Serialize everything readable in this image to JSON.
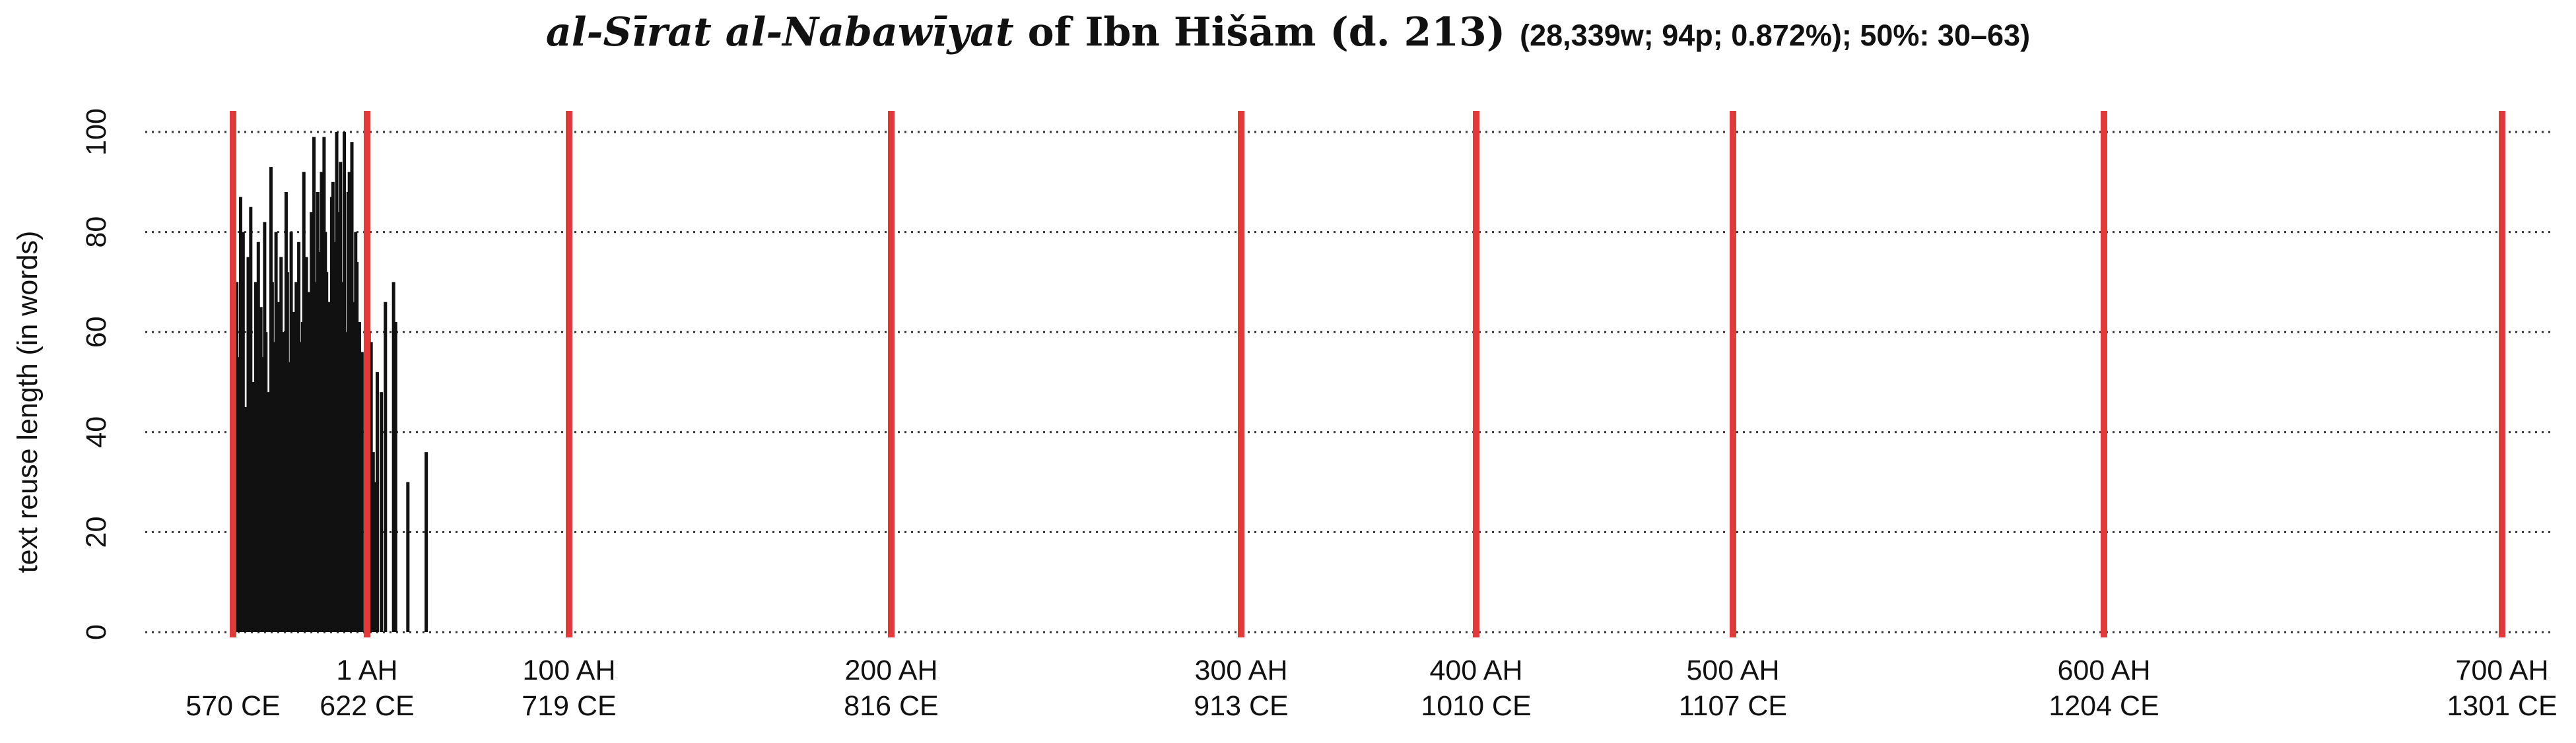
{
  "title": {
    "italic": "al-Sīrat al-Nabawīyat",
    "rest": " of Ibn Hišām (d. 213)",
    "stats": "(28,339w; 94p; 0.872%); 50%: 30–63)"
  },
  "chart_data": {
    "type": "bar",
    "title": "al-Sīrat al-Nabawīyat of Ibn Hišām (d. 213)",
    "subtitle": "(28,339w; 94p; 0.872%); 50%: 30–63)",
    "ylabel": "text reuse length (in words)",
    "ylim": [
      0,
      100
    ],
    "yticks": [
      0,
      20,
      40,
      60,
      80,
      100
    ],
    "grid": "horizontal dotted",
    "xlim": [
      -53,
      700
    ],
    "xunit": "AH",
    "x_ticks": [
      {
        "x": -52,
        "ah": "",
        "ce": "570 CE"
      },
      {
        "x": 1,
        "ah": "1 AH",
        "ce": "622 CE"
      },
      {
        "x": 100,
        "ah": "100 AH",
        "ce": "719 CE"
      },
      {
        "x": 200,
        "ah": "200 AH",
        "ce": "816 CE"
      },
      {
        "x": 300,
        "ah": "300 AH",
        "ce": "913 CE"
      },
      {
        "x": 400,
        "ah": "400 AH",
        "ce": "1010 CE"
      },
      {
        "x": 500,
        "ah": "500 AH",
        "ce": "1107 CE"
      },
      {
        "x": 600,
        "ah": "600 AH",
        "ce": "1204 CE"
      },
      {
        "x": 700,
        "ah": "700 AH",
        "ce": "1301 CE"
      }
    ],
    "reference_lines": [
      -52,
      1,
      100,
      200,
      300,
      400,
      500,
      600,
      700
    ],
    "reference_line_color": "#e03a3a",
    "bar_color": "#111111",
    "series": [
      {
        "x": [
          -51,
          -50.5,
          -50,
          -49,
          -48.5,
          -48,
          -47,
          -46,
          -45.5,
          -45,
          -44,
          -43,
          -42.5,
          -42,
          -41,
          -40,
          -39.5,
          -39,
          -38,
          -37,
          -36.5,
          -36,
          -35,
          -34,
          -33.5,
          -33,
          -32,
          -31,
          -30.5,
          -30,
          -29,
          -28,
          -27.5,
          -27,
          -26,
          -25,
          -24.5,
          -24,
          -23,
          -22,
          -21.5,
          -21,
          -20,
          -19,
          -18.5,
          -18,
          -17,
          -16,
          -15.5,
          -15,
          -14,
          -13,
          -12.5,
          -12,
          -11,
          -10,
          -9.5,
          -9,
          -8,
          -7,
          -6.5,
          -6,
          -5,
          -4,
          -3.5,
          -3,
          -2,
          -1,
          1.5,
          2,
          3,
          4,
          5,
          6,
          8,
          10,
          14,
          15,
          21,
          30
        ],
        "values": [
          18,
          70,
          55,
          87,
          62,
          80,
          45,
          75,
          60,
          85,
          50,
          70,
          40,
          78,
          65,
          55,
          82,
          60,
          48,
          93,
          70,
          58,
          80,
          66,
          52,
          75,
          60,
          88,
          72,
          54,
          80,
          64,
          50,
          70,
          78,
          58,
          62,
          92,
          75,
          68,
          55,
          84,
          99,
          70,
          88,
          76,
          92,
          99,
          80,
          72,
          66,
          87,
          90,
          78,
          100,
          84,
          94,
          70,
          100,
          60,
          88,
          92,
          98,
          66,
          80,
          74,
          62,
          56,
          94,
          60,
          58,
          36,
          30,
          52,
          48,
          66,
          70,
          62,
          30,
          36
        ]
      }
    ]
  }
}
